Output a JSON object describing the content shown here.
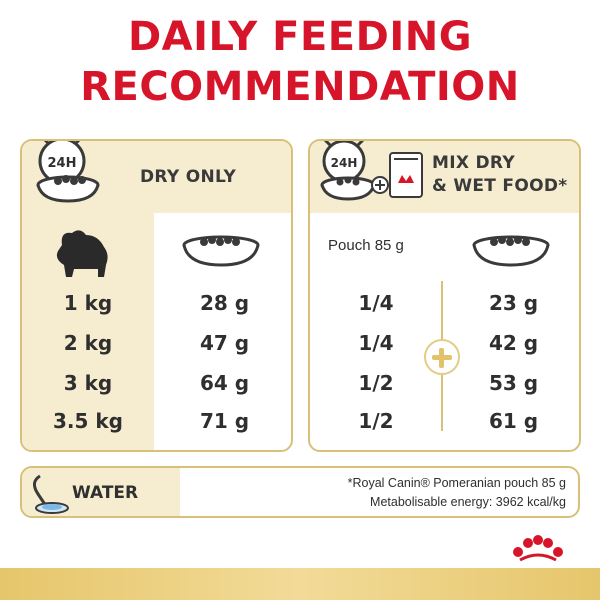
{
  "title": {
    "line1": "DAILY FEEDING",
    "line2": "RECOMMENDATION"
  },
  "dry_panel": {
    "clock_label": "24H",
    "header": "DRY ONLY",
    "rows": [
      {
        "weight": "1 kg",
        "amount": "28 g"
      },
      {
        "weight": "2 kg",
        "amount": "47 g"
      },
      {
        "weight": "3 kg",
        "amount": "64 g"
      },
      {
        "weight": "3.5 kg",
        "amount": "71 g"
      }
    ]
  },
  "mix_panel": {
    "clock_label": "24H",
    "header_line1": "MIX DRY",
    "header_line2": "& WET FOOD*",
    "pouch_label": "Pouch 85 g",
    "rows": [
      {
        "pouch": "1/4",
        "amount": "23 g"
      },
      {
        "pouch": "1/4",
        "amount": "42 g"
      },
      {
        "pouch": "1/2",
        "amount": "53 g"
      },
      {
        "pouch": "1/2",
        "amount": "61 g"
      }
    ]
  },
  "water": {
    "label": "WATER",
    "note_line1": "*Royal Canin® Pomeranian pouch 85 g",
    "note_line2": "Metabolisable energy: 3962 kcal/kg"
  },
  "colors": {
    "title_red": "#d6152a",
    "gold": "#d8c078",
    "cream": "#f6ecd0"
  }
}
